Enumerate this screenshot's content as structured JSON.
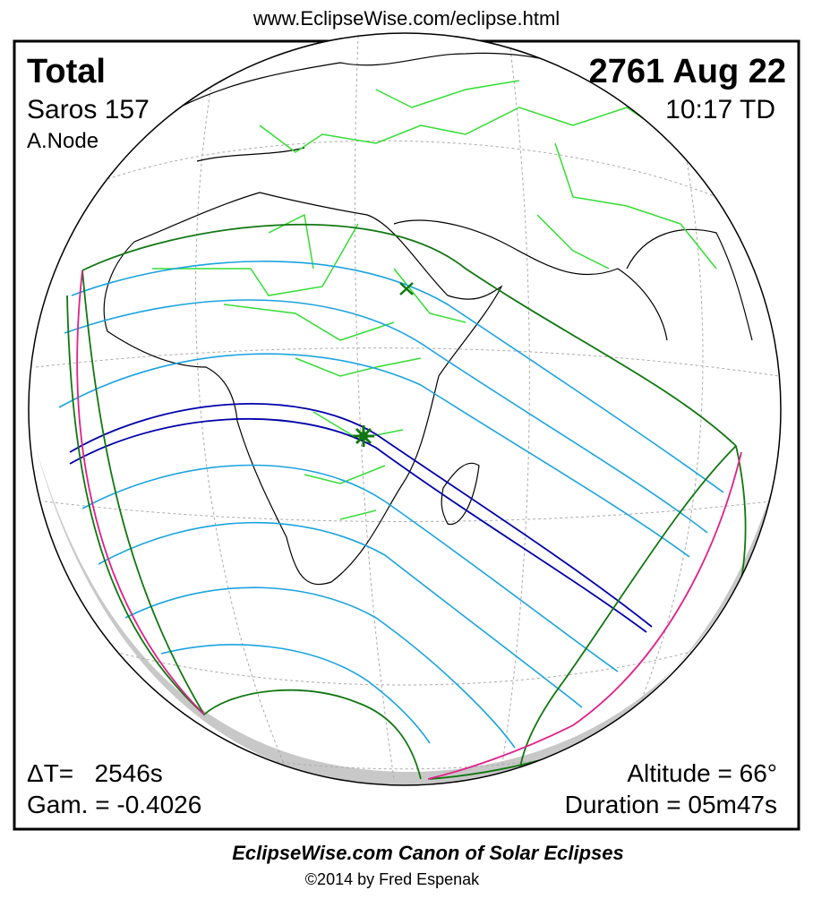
{
  "header": {
    "url": "www.EclipseWise.com/eclipse.html"
  },
  "panel": {
    "top_left": {
      "type": "Total",
      "saros": "Saros 157",
      "node": "A.Node"
    },
    "top_right": {
      "date": "2761 Aug 22",
      "time": "10:17 TD"
    },
    "bottom_left": {
      "delta_t": "ΔT=   2546s",
      "gamma": "Gam. = -0.4026"
    },
    "bottom_right": {
      "altitude": "Altitude = 66°",
      "duration": "Duration = 05m47s"
    }
  },
  "footer": {
    "title": "EclipseWise.com Canon of Solar Eclipses",
    "credit": "©2014 by Fred Espenak"
  }
}
